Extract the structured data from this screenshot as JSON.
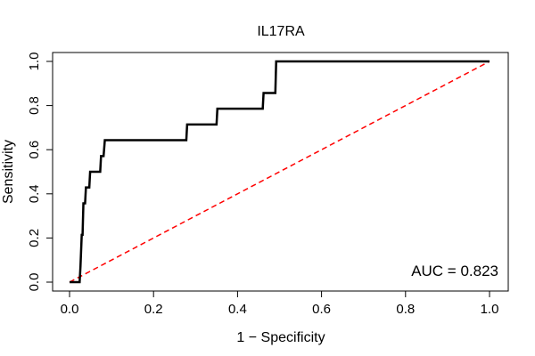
{
  "chart_data": {
    "type": "line",
    "title": "IL17RA",
    "xlabel": "1 − Specificity",
    "ylabel": "Sensitivity",
    "xlim": [
      0,
      1
    ],
    "ylim": [
      0,
      1
    ],
    "x_ticks": [
      "0.0",
      "0.2",
      "0.4",
      "0.6",
      "0.8",
      "1.0"
    ],
    "y_ticks": [
      "0.0",
      "0.2",
      "0.4",
      "0.6",
      "0.8",
      "1.0"
    ],
    "grid": false,
    "annotation": "AUC = 0.823",
    "roc_curve": {
      "color": "#000000",
      "points": [
        [
          0.0,
          0.0
        ],
        [
          0.024,
          0.0
        ],
        [
          0.026,
          0.071
        ],
        [
          0.029,
          0.214
        ],
        [
          0.031,
          0.214
        ],
        [
          0.033,
          0.357
        ],
        [
          0.037,
          0.357
        ],
        [
          0.039,
          0.429
        ],
        [
          0.047,
          0.429
        ],
        [
          0.049,
          0.5
        ],
        [
          0.073,
          0.5
        ],
        [
          0.075,
          0.571
        ],
        [
          0.081,
          0.571
        ],
        [
          0.084,
          0.643
        ],
        [
          0.278,
          0.643
        ],
        [
          0.28,
          0.714
        ],
        [
          0.35,
          0.714
        ],
        [
          0.352,
          0.786
        ],
        [
          0.46,
          0.786
        ],
        [
          0.462,
          0.857
        ],
        [
          0.49,
          0.857
        ],
        [
          0.492,
          1.0
        ],
        [
          1.0,
          1.0
        ]
      ]
    },
    "reference_line": {
      "color": "#ff0000",
      "style": "dashed",
      "points": [
        [
          0,
          0
        ],
        [
          1,
          1
        ]
      ]
    }
  }
}
